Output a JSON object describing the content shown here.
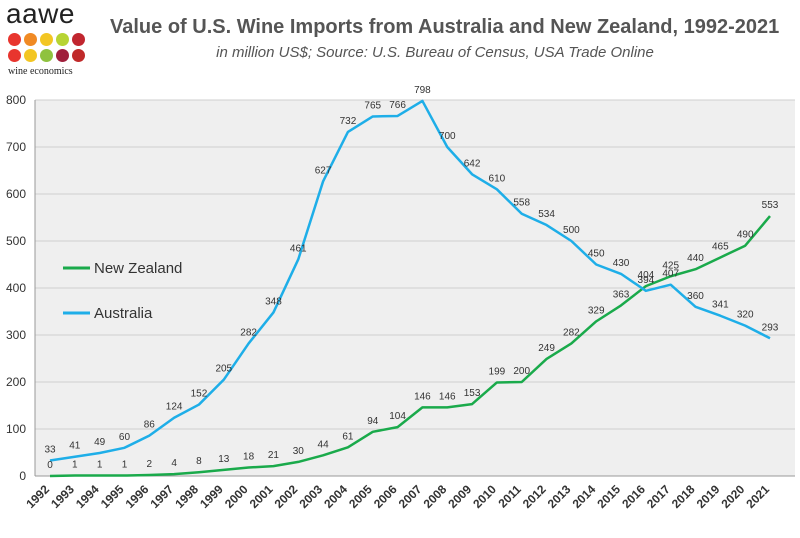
{
  "logo": {
    "word": "aawe",
    "subtext": "wine economics",
    "dot_colors": [
      "#e8352e",
      "#f08a24",
      "#f3c623",
      "#b7d433",
      "#c1262f",
      "#e8352e",
      "#f3c623",
      "#8fc23f",
      "#a01f3c",
      "#c02a2a"
    ]
  },
  "chart_data": {
    "type": "line",
    "title": "Value of U.S. Wine Imports from  Australia and New  Zealand, 1992-2021",
    "subtitle": "in million US$; Source: U.S. Bureau of Census, USA Trade  Online",
    "xlabel": "",
    "ylabel": "",
    "ylim": [
      0,
      800
    ],
    "yticks": [
      0,
      100,
      200,
      300,
      400,
      500,
      600,
      700,
      800
    ],
    "grid": true,
    "categories": [
      "1992",
      "1993",
      "1994",
      "1995",
      "1996",
      "1997",
      "1998",
      "1999",
      "2000",
      "2001",
      "2002",
      "2003",
      "2004",
      "2005",
      "2006",
      "2007",
      "2008",
      "2009",
      "2010",
      "2011",
      "2012",
      "2013",
      "2014",
      "2015",
      "2016",
      "2017",
      "2018",
      "2019",
      "2020",
      "2021"
    ],
    "series": [
      {
        "name": "New Zealand",
        "color": "#1aaa4b",
        "values": [
          0,
          1,
          1,
          1,
          2,
          4,
          8,
          13,
          18,
          21,
          30,
          44,
          61,
          94,
          104,
          146,
          146,
          153,
          199,
          200,
          249,
          282,
          329,
          363,
          404,
          425,
          440,
          465,
          490,
          553
        ],
        "labels": [
          "0",
          "1",
          "1",
          "1",
          "2",
          "4",
          "8",
          "13",
          "18",
          "21",
          "30",
          "44",
          "61",
          "94",
          "104",
          "146",
          "146",
          "153",
          "199",
          "200",
          "249",
          "282",
          "329",
          "363",
          "404",
          "425",
          "440",
          "465",
          "490",
          "553"
        ]
      },
      {
        "name": "Australia",
        "color": "#1eaee8",
        "values": [
          33,
          41,
          49,
          60,
          86,
          124,
          152,
          205,
          282,
          348,
          461,
          627,
          732,
          765,
          766,
          798,
          700,
          642,
          610,
          558,
          534,
          500,
          450,
          430,
          394,
          407,
          360,
          341,
          320,
          293
        ],
        "labels": [
          "33",
          "41",
          "49",
          "60",
          "86",
          "124",
          "152",
          "205",
          "282",
          "348",
          "461",
          "627",
          "732",
          "765",
          "766",
          "798",
          "700",
          "642",
          "610",
          "558",
          "534",
          "500",
          "450",
          "430",
          "394",
          "407",
          "360",
          "341",
          "320",
          "293"
        ]
      }
    ],
    "legend": [
      {
        "name": "New Zealand",
        "color": "#1aaa4b"
      },
      {
        "name": "Australia",
        "color": "#1eaee8"
      }
    ],
    "legend_position": "left-middle"
  }
}
